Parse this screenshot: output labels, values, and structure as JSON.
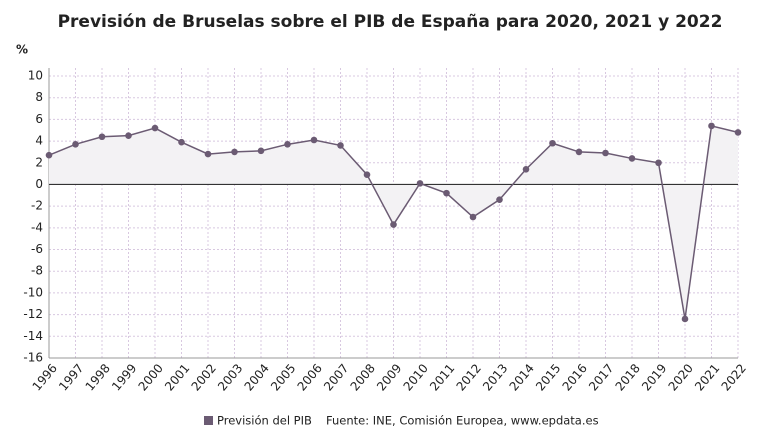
{
  "chart_data": {
    "type": "line",
    "title": "Previsión de Bruselas sobre el PIB de España para 2020, 2021 y 2022",
    "y_label": "%",
    "categories": [
      "1996",
      "1997",
      "1998",
      "1999",
      "2000",
      "2001",
      "2002",
      "2003",
      "2004",
      "2005",
      "2006",
      "2007",
      "2008",
      "2009",
      "2010",
      "2011",
      "2012",
      "2013",
      "2014",
      "2015",
      "2016",
      "2017",
      "2018",
      "2019",
      "2020",
      "2021",
      "2022"
    ],
    "series": [
      {
        "name": "Previsión del PIB",
        "color": "#6b5b73",
        "values": [
          2.7,
          3.7,
          4.4,
          4.5,
          5.2,
          3.9,
          2.8,
          3.0,
          3.1,
          3.7,
          4.1,
          3.6,
          0.9,
          -3.7,
          0.1,
          -0.8,
          -3.0,
          -1.4,
          1.4,
          3.8,
          3.0,
          2.9,
          2.4,
          2.0,
          -12.4,
          5.4,
          4.8
        ]
      }
    ],
    "ylim": [
      -16,
      10
    ],
    "yticks": [
      -16,
      -14,
      -12,
      -10,
      -8,
      -6,
      -4,
      -2,
      0,
      2,
      4,
      6,
      8,
      10
    ],
    "grid": true,
    "area_fill": "#f3f2f4",
    "source": "Fuente: INE, Comisión Europea, www.epdata.es"
  }
}
